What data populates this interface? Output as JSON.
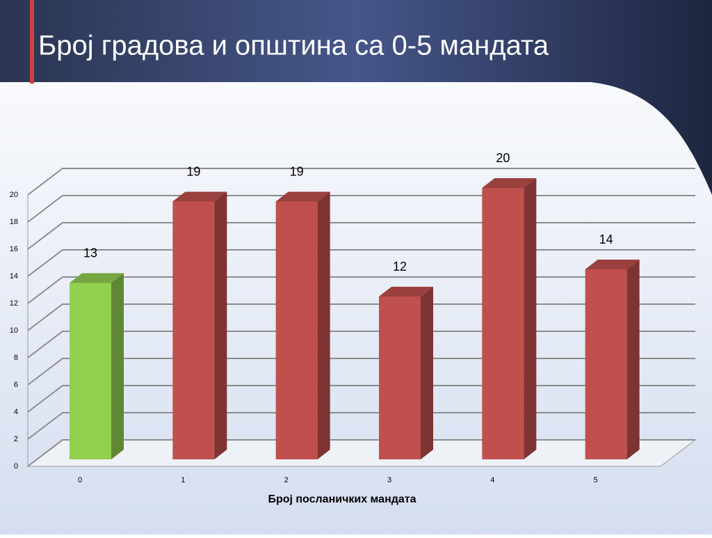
{
  "chart_data": {
    "type": "bar3d",
    "title": "Број градова и општина са 0-5 мандата",
    "x_label": "Број посланичких мандата",
    "categories": [
      "0",
      "1",
      "2",
      "3",
      "4",
      "5"
    ],
    "series": [
      {
        "values": [
          13,
          19,
          19,
          12,
          20,
          14
        ],
        "colors": [
          "#92d050",
          "#c0504d",
          "#c0504d",
          "#c0504d",
          "#c0504d",
          "#c0504d"
        ]
      }
    ],
    "ylim": [
      0,
      20
    ],
    "yticks": [
      0,
      2,
      4,
      6,
      8,
      10,
      12,
      14,
      16,
      18,
      20
    ],
    "grid": true
  }
}
